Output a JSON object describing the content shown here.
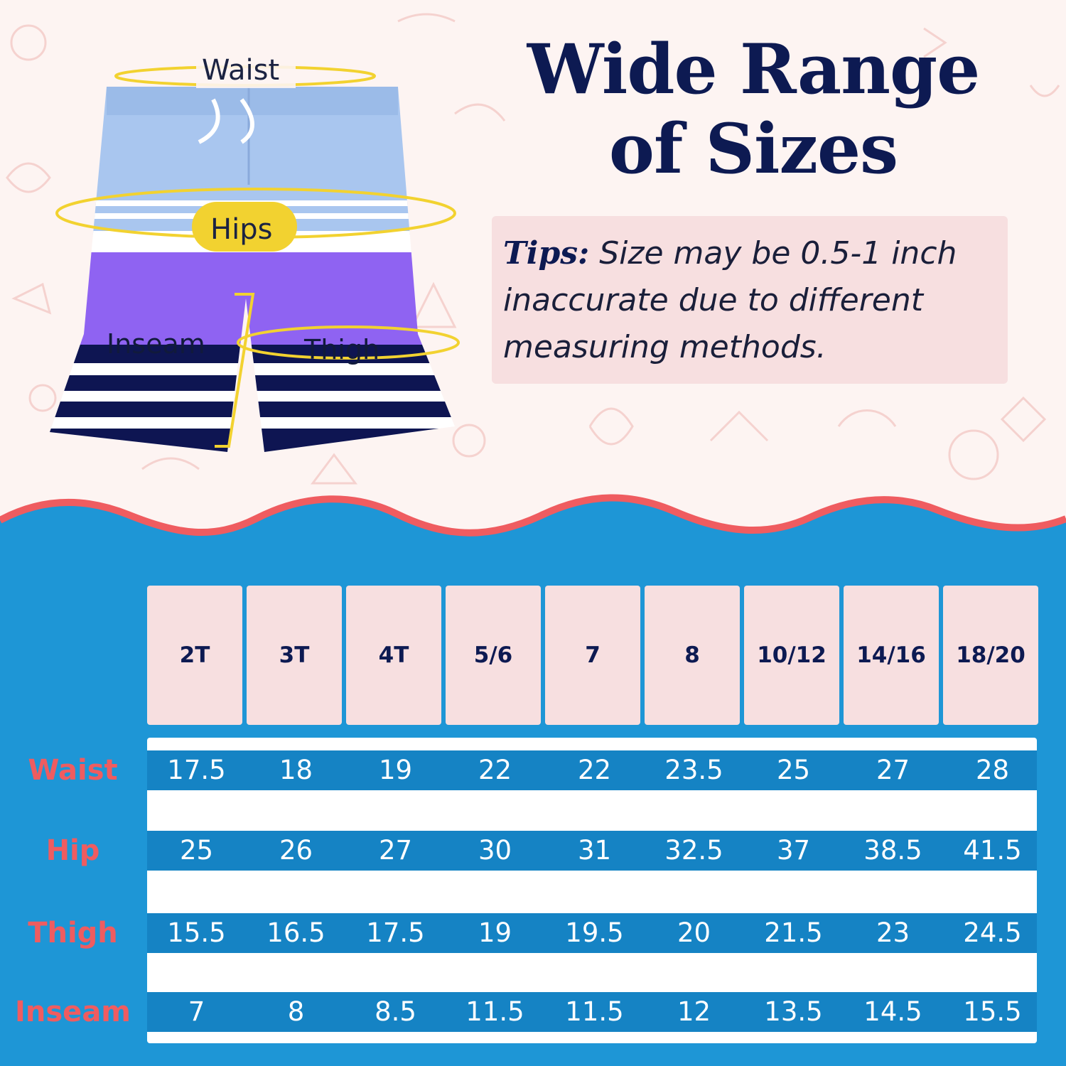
{
  "headline": {
    "line1": "Wide Range",
    "line2": "of Sizes"
  },
  "tips": {
    "label": "Tips:",
    "text": " Size may be 0.5-1 inch inaccurate due to different measuring methods."
  },
  "measure_labels": {
    "waist": "Waist",
    "hips": "Hips",
    "inseam": "Inseam",
    "thigh": "Thigh"
  },
  "size_chart": {
    "sizes": [
      "2T",
      "3T",
      "4T",
      "5/6",
      "7",
      "8",
      "10/12",
      "14/16",
      "18/20"
    ],
    "rows": [
      {
        "label": "Waist",
        "values": [
          "17.5",
          "18",
          "19",
          "22",
          "22",
          "23.5",
          "25",
          "27",
          "28"
        ]
      },
      {
        "label": "Hip",
        "values": [
          "25",
          "26",
          "27",
          "30",
          "31",
          "32.5",
          "37",
          "38.5",
          "41.5"
        ]
      },
      {
        "label": "Thigh",
        "values": [
          "15.5",
          "16.5",
          "17.5",
          "19",
          "19.5",
          "20",
          "21.5",
          "23",
          "24.5"
        ]
      },
      {
        "label": "Inseam",
        "values": [
          "7",
          "8",
          "8.5",
          "11.5",
          "11.5",
          "12",
          "13.5",
          "14.5",
          "15.5"
        ]
      }
    ]
  },
  "colors": {
    "navy": "#0d1a52",
    "pink_panel": "#f7dfe0",
    "blue_bg": "#1e96d6",
    "band_blue": "#1583c4",
    "coral": "#ef5c60",
    "tape_yellow": "#f2d230"
  }
}
